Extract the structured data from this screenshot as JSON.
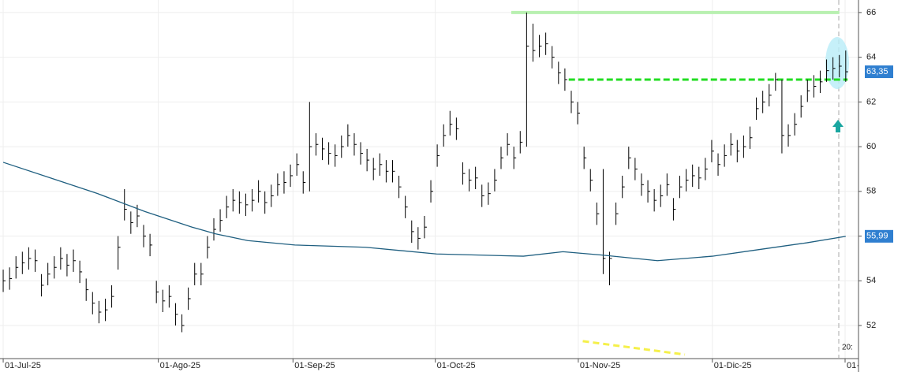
{
  "chart_data": {
    "type": "ohlc",
    "close": [
      54.0,
      54.1,
      54.6,
      54.8,
      55.0,
      54.9,
      53.8,
      54.3,
      54.6,
      55.0,
      54.7,
      54.9,
      54.4,
      53.6,
      53.0,
      52.6,
      52.7,
      53.3,
      55.5,
      57.2,
      56.6,
      56.9,
      56.0,
      55.6,
      53.5,
      53.1,
      53.3,
      52.5,
      52.0,
      53.2,
      54.3,
      54.3,
      55.5,
      56.3,
      56.7,
      57.3,
      57.6,
      57.5,
      57.4,
      57.6,
      58.0,
      57.5,
      57.8,
      58.3,
      58.4,
      58.7,
      59.2,
      58.4,
      60.0,
      60.1,
      59.9,
      59.7,
      59.6,
      60.0,
      60.5,
      60.1,
      59.7,
      59.4,
      59.0,
      59.2,
      58.9,
      58.9,
      58.2,
      57.3,
      56.2,
      55.9,
      56.4,
      58.0,
      59.6,
      60.5,
      61.0,
      60.8,
      58.8,
      58.5,
      58.6,
      57.8,
      57.9,
      58.5,
      59.5,
      60.1,
      59.5,
      60.2,
      64.5,
      64.3,
      64.5,
      64.6,
      64.0,
      63.3,
      63.0,
      62.0,
      61.5,
      59.5,
      58.5,
      57.0,
      55.0,
      55.0,
      57.0,
      58.2,
      59.5,
      59.0,
      58.3,
      58.0,
      57.6,
      57.8,
      58.3,
      57.2,
      58.2,
      58.5,
      58.7,
      58.6,
      59.0,
      59.8,
      59.2,
      59.6,
      60.1,
      59.8,
      60.0,
      60.4,
      61.7,
      62.0,
      62.3,
      63.0,
      60.5,
      60.5,
      61.0,
      61.8,
      62.5,
      62.7,
      62.9,
      63.4,
      63.5,
      63.6,
      63.35
    ],
    "high": [
      54.5,
      54.6,
      55.1,
      55.3,
      55.5,
      55.4,
      54.3,
      54.8,
      55.1,
      55.5,
      55.2,
      55.4,
      54.9,
      54.1,
      53.5,
      53.1,
      53.2,
      53.8,
      56.0,
      58.1,
      57.1,
      57.4,
      56.5,
      56.1,
      54.0,
      53.6,
      53.8,
      53.0,
      52.5,
      53.7,
      54.8,
      54.8,
      56.0,
      56.8,
      57.2,
      57.8,
      58.1,
      58.0,
      57.9,
      58.1,
      58.5,
      58.0,
      58.3,
      58.8,
      58.9,
      59.2,
      59.7,
      58.9,
      62.0,
      60.6,
      60.4,
      60.2,
      60.1,
      60.5,
      61.0,
      60.6,
      60.2,
      59.9,
      59.5,
      59.7,
      59.4,
      59.4,
      58.7,
      57.8,
      56.7,
      56.4,
      56.9,
      58.5,
      60.1,
      61.0,
      61.6,
      61.3,
      59.3,
      59.0,
      59.1,
      58.3,
      58.4,
      59.0,
      60.0,
      60.6,
      60.0,
      60.7,
      66.0,
      65.5,
      65.0,
      65.1,
      64.5,
      63.8,
      63.5,
      62.5,
      62.0,
      60.0,
      59.0,
      57.5,
      59.0,
      55.3,
      57.5,
      58.7,
      60.0,
      59.5,
      58.8,
      58.5,
      58.1,
      58.3,
      58.8,
      57.7,
      58.7,
      59.0,
      59.2,
      59.1,
      59.5,
      60.3,
      59.7,
      60.1,
      60.6,
      60.3,
      60.5,
      60.9,
      62.2,
      62.5,
      62.8,
      63.3,
      63.0,
      61.0,
      61.5,
      62.3,
      63.0,
      63.2,
      63.4,
      63.9,
      64.0,
      64.1,
      64.3
    ],
    "low": [
      53.5,
      53.6,
      54.1,
      54.3,
      54.5,
      54.4,
      53.3,
      53.8,
      54.1,
      54.5,
      54.2,
      54.4,
      53.9,
      53.1,
      52.5,
      52.1,
      52.2,
      52.8,
      54.5,
      56.7,
      56.1,
      56.4,
      55.5,
      55.1,
      53.0,
      52.6,
      52.8,
      52.0,
      51.7,
      52.7,
      53.8,
      53.8,
      55.0,
      55.8,
      56.2,
      56.8,
      57.1,
      57.0,
      56.9,
      57.1,
      57.5,
      57.0,
      57.3,
      57.8,
      57.9,
      58.2,
      58.7,
      57.9,
      58.0,
      59.6,
      59.4,
      59.2,
      59.1,
      59.5,
      60.0,
      59.6,
      59.2,
      58.9,
      58.5,
      58.7,
      58.4,
      58.4,
      57.7,
      56.8,
      55.7,
      55.4,
      55.9,
      57.5,
      59.1,
      60.0,
      60.5,
      60.3,
      58.3,
      58.0,
      58.1,
      57.3,
      57.4,
      58.0,
      59.0,
      59.6,
      59.0,
      59.7,
      60.0,
      63.8,
      64.0,
      64.1,
      63.5,
      62.8,
      62.5,
      61.5,
      61.0,
      59.0,
      58.0,
      56.5,
      54.3,
      53.8,
      56.5,
      57.7,
      59.0,
      58.5,
      57.8,
      57.5,
      57.1,
      57.3,
      57.8,
      56.7,
      57.7,
      58.0,
      58.2,
      58.1,
      58.5,
      59.3,
      58.7,
      59.1,
      59.6,
      59.3,
      59.5,
      59.9,
      61.2,
      61.5,
      61.8,
      62.5,
      59.7,
      60.0,
      60.5,
      61.3,
      62.0,
      62.2,
      62.4,
      62.9,
      63.0,
      63.1,
      62.9
    ],
    "color": "#000000",
    "moving_average": {
      "color": "#1f5f80",
      "x": [
        0,
        7.4,
        14.8,
        22.2,
        29.6,
        33.3,
        38.3,
        45.7,
        56.8,
        67.9,
        81.5,
        87.7,
        93.8,
        102.5,
        111.1,
        118.5,
        125.9,
        132
      ],
      "values": [
        59.3,
        58.6,
        57.9,
        57.1,
        56.4,
        56.1,
        55.8,
        55.6,
        55.5,
        55.2,
        55.1,
        55.3,
        55.15,
        54.9,
        55.1,
        55.4,
        55.7,
        55.99
      ],
      "value_label": "55,99"
    },
    "last_value": {
      "value": 63.35,
      "label": "63,35",
      "color": "#2f7fd0"
    },
    "levels": [
      {
        "value": 66,
        "x": [
          79.6,
          131
        ],
        "color": "#b8f0b0",
        "style": "solid"
      },
      {
        "value": 63,
        "x": [
          88.6,
          132.3
        ],
        "color": "#22dd22",
        "style": "dashed"
      }
    ],
    "trend_line": {
      "x": [
        90.8,
        106.8
      ],
      "values": [
        51.3,
        50.7
      ],
      "color": "#f5f04a"
    },
    "xlim": [
      -0.5,
      134
    ],
    "ylim": [
      50.52,
      66.56
    ],
    "yticks": [
      52,
      54,
      56,
      58,
      60,
      62,
      64,
      66
    ],
    "xticks": [
      {
        "value": 0,
        "label": "01-Jul-25"
      },
      {
        "value": 24.3,
        "label": "01-Ago-25"
      },
      {
        "value": 45.4,
        "label": "01-Sep-25"
      },
      {
        "value": 67.7,
        "label": "01-Oct-25"
      },
      {
        "value": 90.1,
        "label": "01-Nov-25"
      },
      {
        "value": 111.1,
        "label": "01-Dic-25"
      },
      {
        "value": 131.9,
        "label": "01·"
      }
    ],
    "corner_note": "20:",
    "grid": true
  }
}
